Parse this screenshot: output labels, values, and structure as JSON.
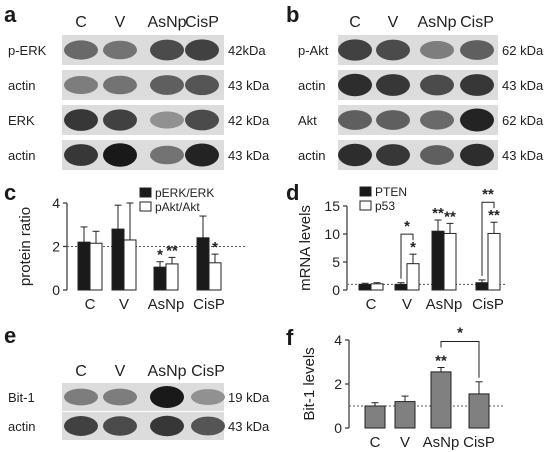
{
  "panel_labels": {
    "a": "a",
    "b": "b",
    "c": "c",
    "d": "d",
    "e": "e",
    "f": "f"
  },
  "lanes": [
    "C",
    "V",
    "AsNp",
    "CisP"
  ],
  "blot_a": {
    "rows": [
      {
        "label": "p-ERK",
        "kda": "42kDa",
        "bands": [
          0.55,
          0.5,
          0.7,
          0.75
        ]
      },
      {
        "label": "actin",
        "kda": "43 kDa",
        "bands": [
          0.45,
          0.5,
          0.6,
          0.65
        ]
      },
      {
        "label": "ERK",
        "kda": "42 kDa",
        "bands": [
          0.8,
          0.75,
          0.35,
          0.7
        ]
      },
      {
        "label": "actin",
        "kda": "43 kDa",
        "bands": [
          0.8,
          0.95,
          0.5,
          0.9
        ]
      }
    ]
  },
  "blot_b": {
    "rows": [
      {
        "label": "p-Akt",
        "kda": "62 kDa",
        "bands": [
          0.75,
          0.7,
          0.45,
          0.6
        ]
      },
      {
        "label": "actin",
        "kda": "43 kDa",
        "bands": [
          0.85,
          0.8,
          0.7,
          0.8
        ]
      },
      {
        "label": "Akt",
        "kda": "62 kDa",
        "bands": [
          0.6,
          0.6,
          0.55,
          0.9
        ]
      },
      {
        "label": "actin",
        "kda": "43 kDa",
        "bands": [
          0.85,
          0.8,
          0.6,
          0.85
        ]
      }
    ]
  },
  "blot_e": {
    "rows": [
      {
        "label": "Bit-1",
        "kda": "19 kDa",
        "bands": [
          0.45,
          0.45,
          0.95,
          0.35
        ]
      },
      {
        "label": "actin",
        "kda": "43 kDa",
        "bands": [
          0.75,
          0.7,
          0.8,
          0.65
        ]
      }
    ]
  },
  "colors": {
    "black_bar": "#1a1a1a",
    "white_bar": "#ffffff",
    "grey_bar": "#808080"
  },
  "chart_data": [
    {
      "panel": "c",
      "type": "bar",
      "categories": [
        "C",
        "V",
        "AsNp",
        "CisP"
      ],
      "ylabel": "protein ratio",
      "ylim": [
        0,
        4
      ],
      "yticks": [
        0,
        2,
        4
      ],
      "reference_line": 2,
      "legend_position": "top-right",
      "series": [
        {
          "name": "pERK/ERK",
          "color": "black",
          "values": [
            2.2,
            2.8,
            1.05,
            2.4
          ],
          "errors": [
            0.7,
            1.1,
            0.25,
            1.0
          ]
        },
        {
          "name": "pAkt/Akt",
          "color": "white",
          "values": [
            2.15,
            2.3,
            1.2,
            1.25
          ],
          "errors": [
            0.55,
            1.7,
            0.3,
            0.4
          ]
        }
      ],
      "annotations": [
        {
          "category": "AsNp",
          "series": "pERK/ERK",
          "text": "*"
        },
        {
          "category": "AsNp",
          "series": "pAkt/Akt",
          "text": "**"
        },
        {
          "category": "CisP",
          "series": "pAkt/Akt",
          "text": "*"
        }
      ]
    },
    {
      "panel": "d",
      "type": "bar",
      "categories": [
        "C",
        "V",
        "AsNp",
        "CisP"
      ],
      "ylabel": "mRNA levels",
      "ylim": [
        0,
        15
      ],
      "yticks": [
        0,
        5,
        10,
        15
      ],
      "reference_line": 1,
      "legend_position": "top-left",
      "series": [
        {
          "name": "PTEN",
          "color": "black",
          "values": [
            1.0,
            1.0,
            10.5,
            1.3
          ],
          "errors": [
            0.2,
            0.3,
            2.0,
            0.5
          ]
        },
        {
          "name": "p53",
          "color": "white",
          "values": [
            1.1,
            4.7,
            10.1,
            10.1
          ],
          "errors": [
            0.2,
            1.7,
            1.8,
            2.0
          ]
        }
      ],
      "annotations": [
        {
          "category": "V",
          "series": "p53",
          "text": "*"
        },
        {
          "category": "AsNp",
          "series": "PTEN",
          "text": "**"
        },
        {
          "category": "AsNp",
          "series": "p53",
          "text": "**"
        },
        {
          "category": "CisP",
          "series": "p53",
          "text": "**"
        }
      ],
      "brackets": [
        {
          "category": "V",
          "text": "*"
        },
        {
          "category": "CisP",
          "text": "**"
        }
      ]
    },
    {
      "panel": "f",
      "type": "bar",
      "categories": [
        "C",
        "V",
        "AsNp",
        "CisP"
      ],
      "ylabel": "Bit-1 levels",
      "ylim": [
        0,
        4
      ],
      "yticks": [
        0,
        2,
        4
      ],
      "reference_line": 1,
      "series": [
        {
          "color": "grey",
          "values": [
            1.0,
            1.2,
            2.55,
            1.55
          ],
          "errors": [
            0.15,
            0.25,
            0.2,
            0.55
          ]
        }
      ],
      "annotations": [
        {
          "category": "AsNp",
          "text": "**"
        }
      ],
      "brackets": [
        {
          "from": "AsNp",
          "to": "CisP",
          "text": "*"
        }
      ]
    }
  ]
}
